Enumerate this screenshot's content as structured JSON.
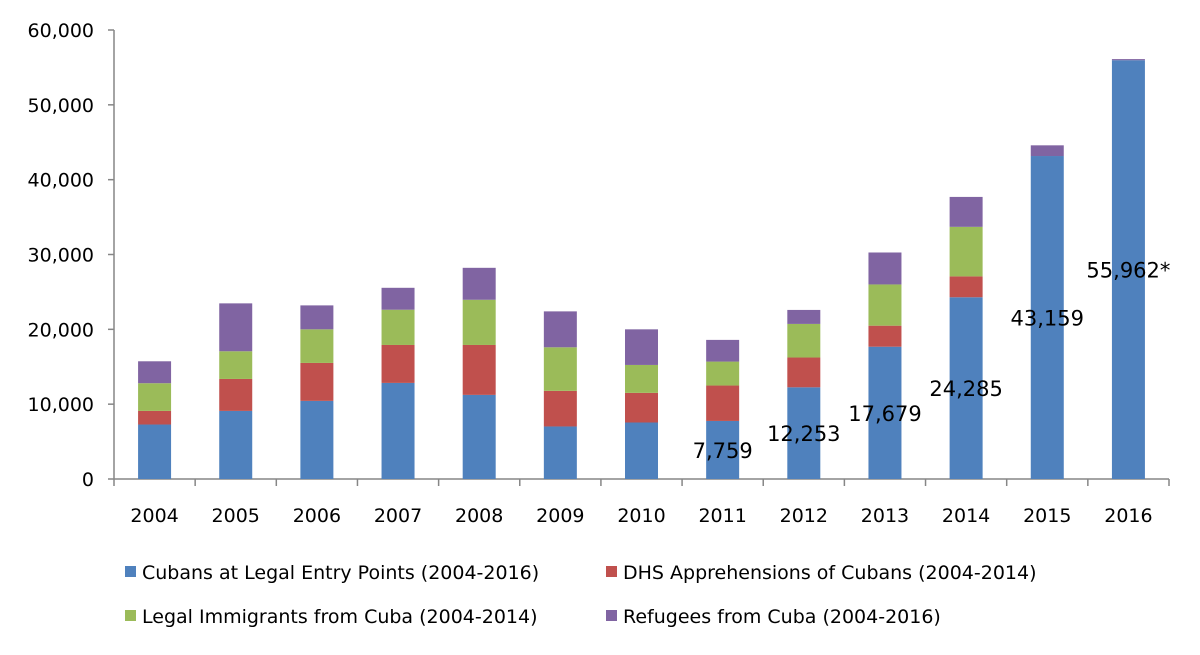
{
  "chart_data": {
    "type": "bar",
    "stacked": true,
    "title": "",
    "xlabel": "",
    "ylabel": "",
    "ylim": [
      0,
      60000
    ],
    "yticks": [
      0,
      10000,
      20000,
      30000,
      40000,
      50000,
      60000
    ],
    "ytick_labels": [
      "0",
      "10,000",
      "20,000",
      "30,000",
      "40,000",
      "50,000",
      "60,000"
    ],
    "grid": false,
    "legend_position": "bottom",
    "categories": [
      "2004",
      "2005",
      "2006",
      "2007",
      "2008",
      "2009",
      "2010",
      "2011",
      "2012",
      "2013",
      "2014",
      "2015",
      "2016"
    ],
    "series": [
      {
        "name": "Cubans at Legal Entry Points (2004-2016)",
        "color": "#4f81bd",
        "values": [
          7280,
          9100,
          10440,
          12840,
          11240,
          7020,
          7550,
          7759,
          12253,
          17679,
          24285,
          43159,
          55962
        ]
      },
      {
        "name": "DHS Apprehensions of Cubans (2004-2014)",
        "color": "#c0504d",
        "values": [
          1820,
          4270,
          5070,
          5070,
          6670,
          4760,
          3960,
          4730,
          3980,
          2810,
          2790,
          0,
          0
        ]
      },
      {
        "name": "Legal Immigrants from Cuba (2004-2014)",
        "color": "#9bbb59",
        "values": [
          3700,
          3700,
          4490,
          4710,
          6040,
          5820,
          3730,
          3200,
          4490,
          5510,
          6620,
          0,
          0
        ]
      },
      {
        "name": "Refugees from Cuba (2004-2016)",
        "color": "#8064a2",
        "values": [
          2930,
          6400,
          3200,
          2930,
          4270,
          4800,
          4760,
          2900,
          1870,
          4270,
          4000,
          1430,
          150
        ]
      }
    ],
    "data_labels": [
      {
        "category": "2011",
        "series": 0,
        "text": "7,759"
      },
      {
        "category": "2012",
        "series": 0,
        "text": "12,253"
      },
      {
        "category": "2013",
        "series": 0,
        "text": "17,679"
      },
      {
        "category": "2014",
        "series": 0,
        "text": "24,285"
      },
      {
        "category": "2015",
        "series": 0,
        "text": "43,159"
      },
      {
        "category": "2016",
        "series": 0,
        "text": "55,962*"
      }
    ]
  }
}
